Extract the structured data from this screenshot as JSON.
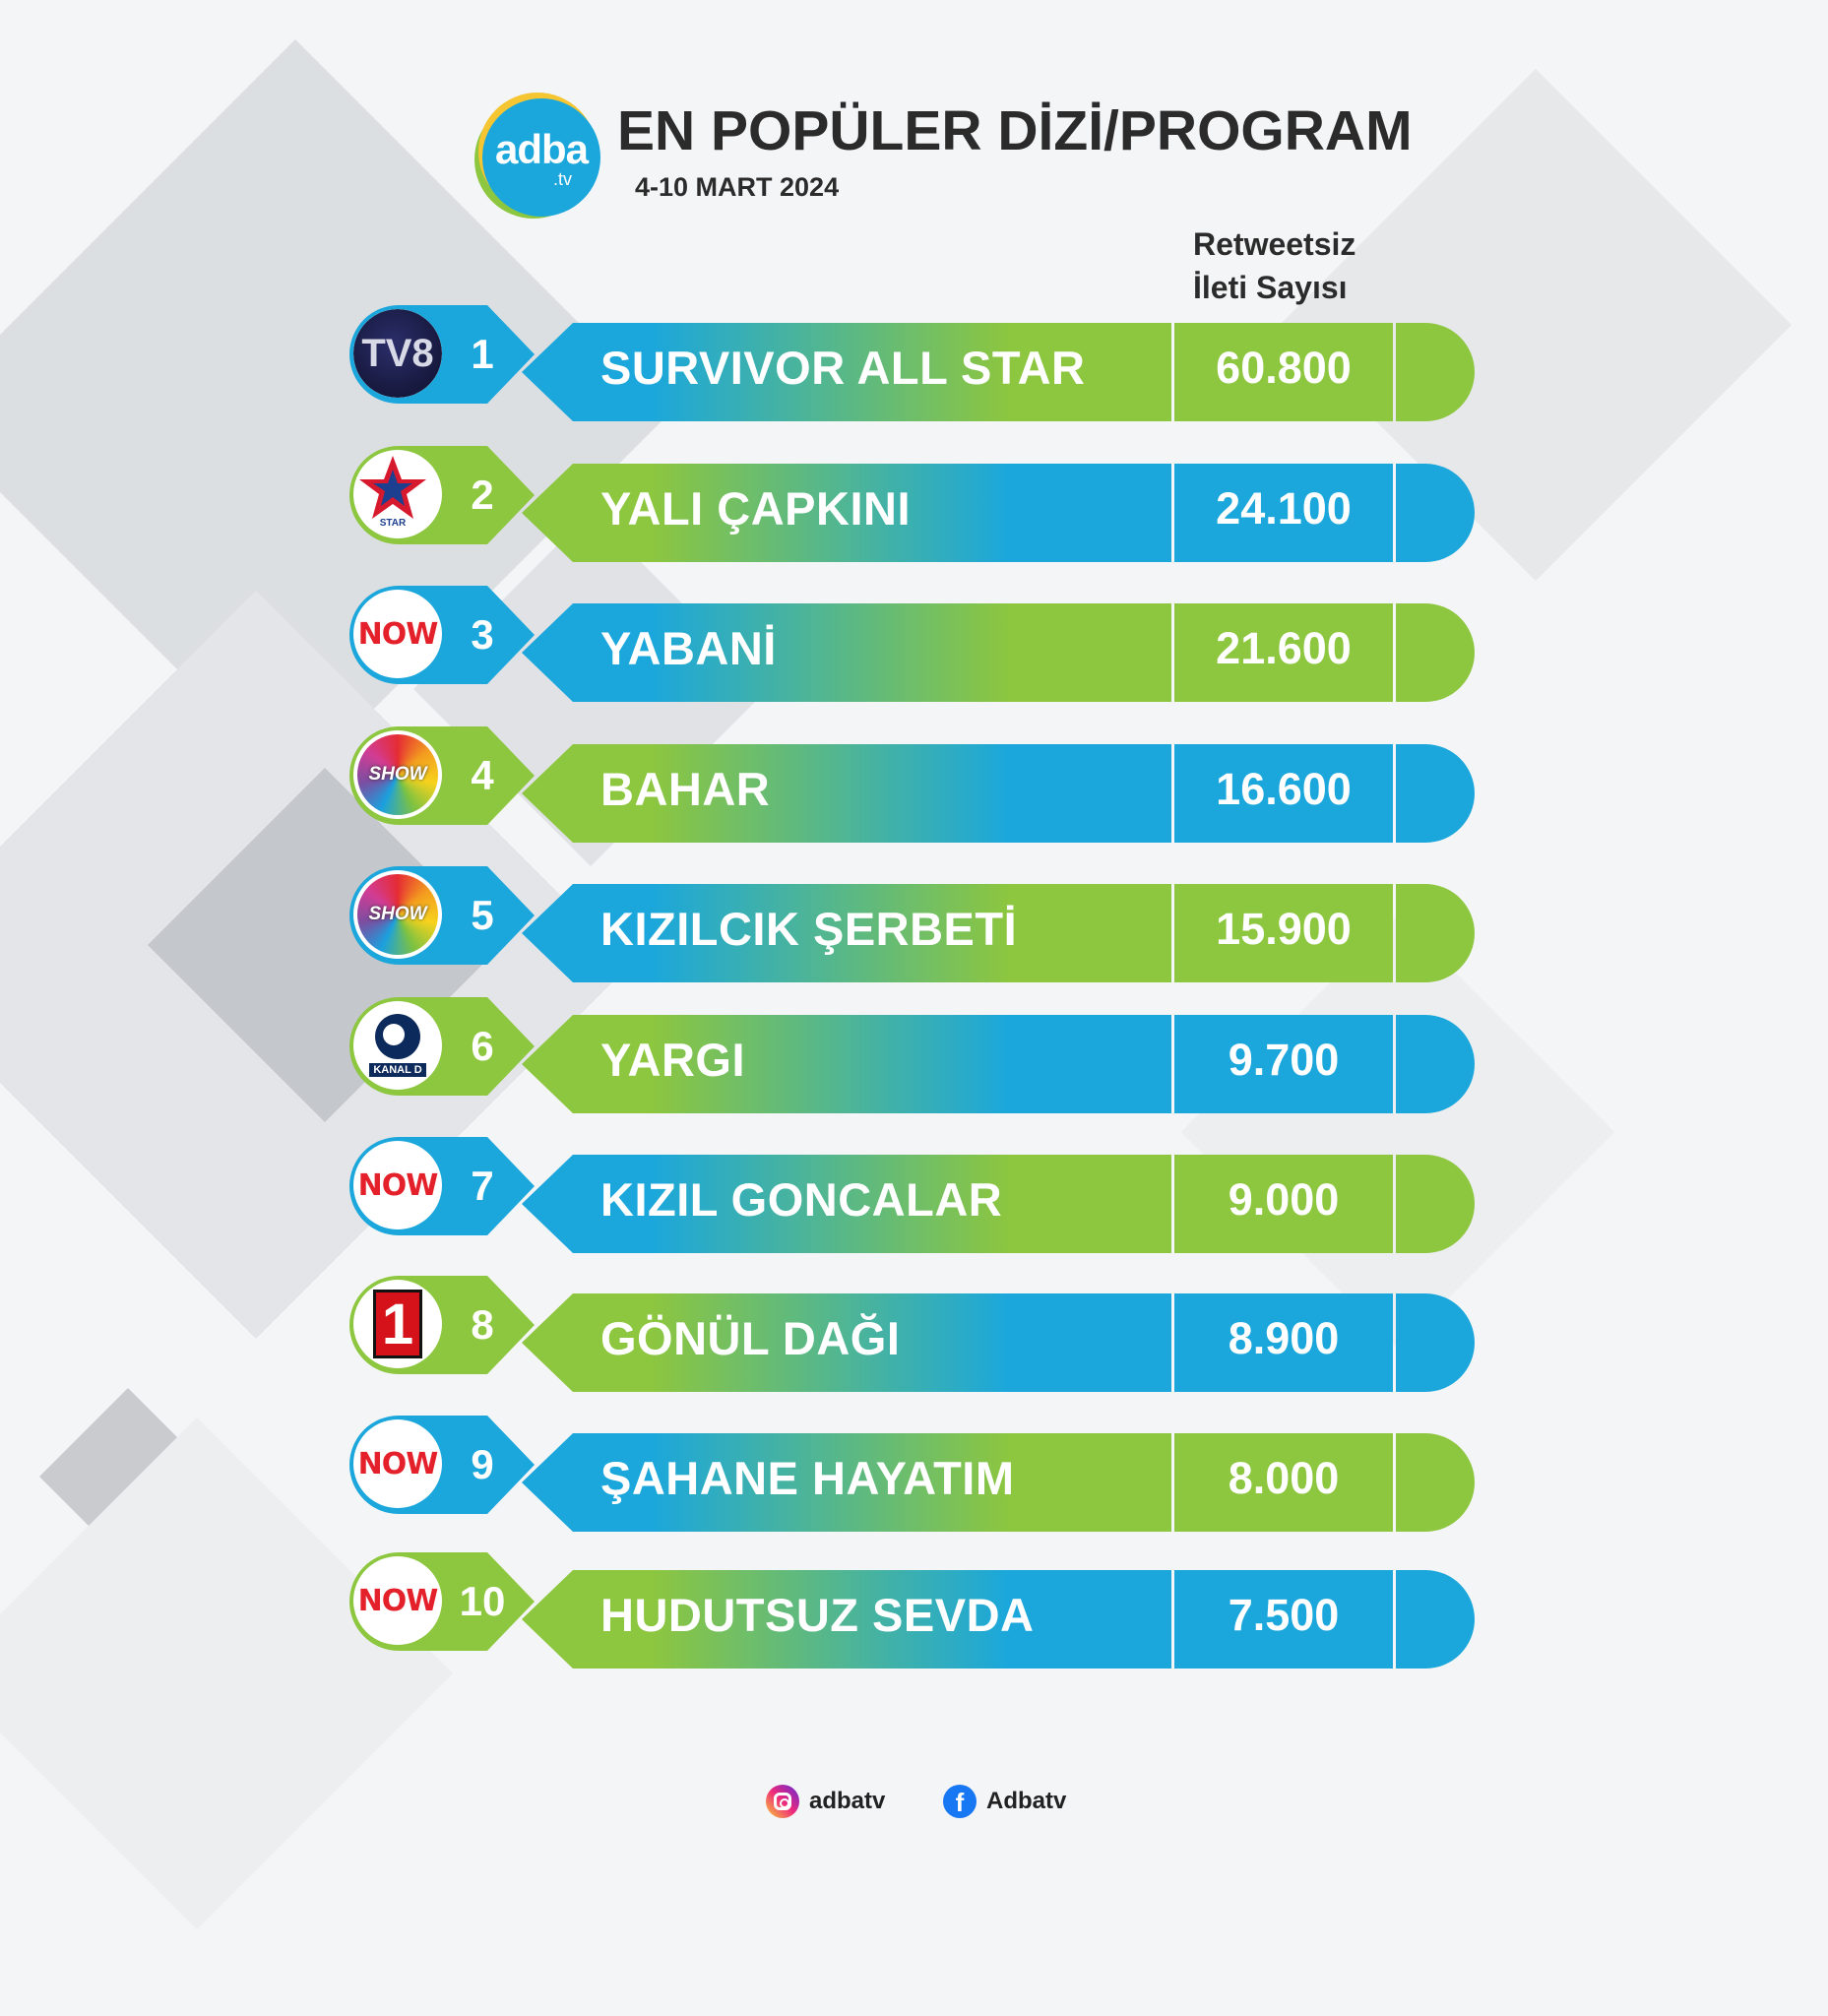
{
  "header": {
    "logo_text": "adba",
    "logo_sub": ".tv",
    "title": "EN POPÜLER DİZİ/PROGRAM",
    "date": "4-10 MART 2024",
    "column_header_line1": "Retweetsiz",
    "column_header_line2": "İleti Sayısı"
  },
  "colors": {
    "blue": "#1ba7dc",
    "green": "#8dc63f"
  },
  "chart_data": {
    "type": "table",
    "title": "EN POPÜLER DİZİ/PROGRAM",
    "subtitle": "4-10 MART 2024",
    "value_label": "Retweetsiz İleti Sayısı",
    "rows": [
      {
        "rank": "1",
        "name": "SURVIVOR ALL STAR",
        "value": 60800,
        "value_text": "60.800",
        "channel": "tv8-logo",
        "channel_text": "TV8",
        "color": "blue"
      },
      {
        "rank": "2",
        "name": "YALI ÇAPKINI",
        "value": 24100,
        "value_text": "24.100",
        "channel": "star-logo",
        "channel_text": "STAR",
        "color": "green"
      },
      {
        "rank": "3",
        "name": "YABANİ",
        "value": 21600,
        "value_text": "21.600",
        "channel": "now-logo",
        "channel_text": "NOW",
        "color": "blue"
      },
      {
        "rank": "4",
        "name": "BAHAR",
        "value": 16600,
        "value_text": "16.600",
        "channel": "show-logo",
        "channel_text": "SHOW",
        "color": "green"
      },
      {
        "rank": "5",
        "name": "KIZILCIK ŞERBETİ",
        "value": 15900,
        "value_text": "15.900",
        "channel": "show-logo",
        "channel_text": "SHOW",
        "color": "blue"
      },
      {
        "rank": "6",
        "name": "YARGI",
        "value": 9700,
        "value_text": "9.700",
        "channel": "kanald-logo",
        "channel_text": "KANAL D",
        "color": "green"
      },
      {
        "rank": "7",
        "name": "KIZIL GONCALAR",
        "value": 9000,
        "value_text": "9.000",
        "channel": "now-logo",
        "channel_text": "NOW",
        "color": "blue"
      },
      {
        "rank": "8",
        "name": "GÖNÜL DAĞI",
        "value": 8900,
        "value_text": "8.900",
        "channel": "trt1-logo",
        "channel_text": "1",
        "color": "green"
      },
      {
        "rank": "9",
        "name": "ŞAHANE HAYATIM",
        "value": 8000,
        "value_text": "8.000",
        "channel": "now-logo",
        "channel_text": "NOW",
        "color": "blue"
      },
      {
        "rank": "10",
        "name": "HUDUTSUZ SEVDA",
        "value": 7500,
        "value_text": "7.500",
        "channel": "now-logo",
        "channel_text": "NOW",
        "color": "green"
      }
    ]
  },
  "footer": {
    "instagram": "adbatv",
    "facebook": "Adbatv",
    "facebook_glyph": "f"
  }
}
